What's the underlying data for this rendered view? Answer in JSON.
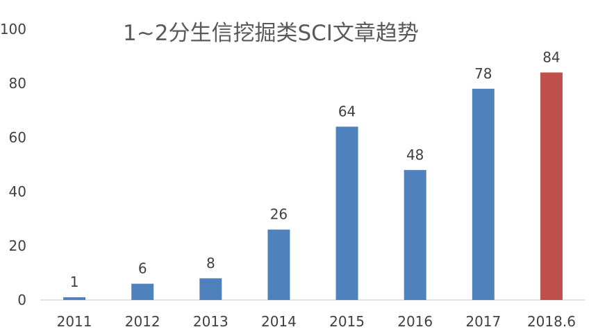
{
  "chart_data": {
    "type": "bar",
    "title": "1~2分生信挖掘类SCI文章趋势",
    "xlabel": "",
    "ylabel": "",
    "categories": [
      "2011",
      "2012",
      "2013",
      "2014",
      "2015",
      "2016",
      "2017",
      "2018.6"
    ],
    "values": [
      1,
      6,
      8,
      26,
      64,
      48,
      78,
      84
    ],
    "data_labels": [
      "1",
      "6",
      "8",
      "26",
      "64",
      "48",
      "78",
      "84"
    ],
    "yticks": [
      "0",
      "20",
      "40",
      "60",
      "80",
      "100"
    ],
    "ylim": [
      0,
      100
    ],
    "grid": false,
    "legend": "none",
    "bar_color": "#4f81bd",
    "highlight_color": "#c0504d",
    "highlight_category": "2018.6"
  }
}
